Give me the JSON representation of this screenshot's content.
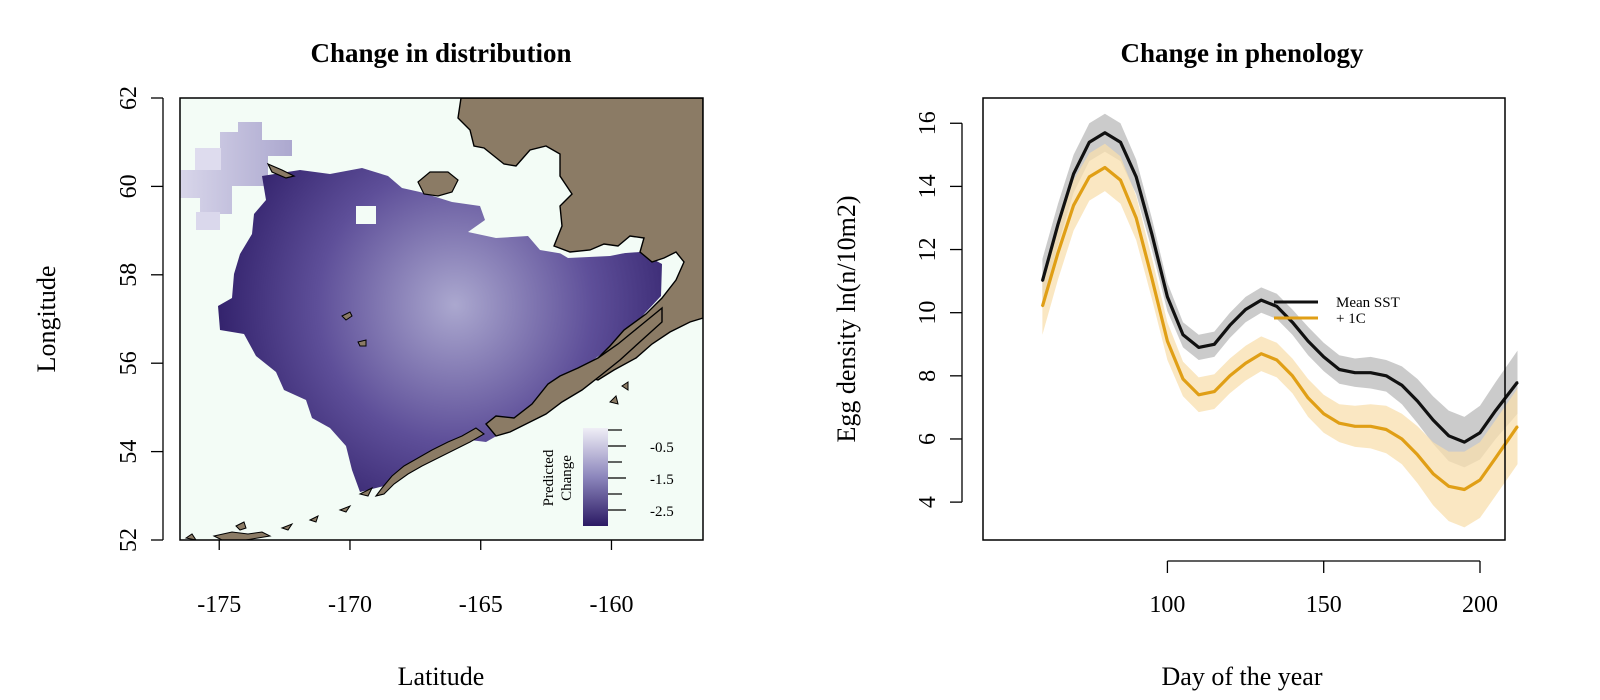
{
  "colors": {
    "land": "#8b7b65",
    "ocean_bg": "#f3fcf6",
    "mean_line": "#111111",
    "mean_band": "#c8c8c8",
    "warm_line": "#e09f16",
    "warm_band": "#f8dfae",
    "ramp_low": "#2b1a64",
    "ramp_mid": "#8c86bc",
    "ramp_high": "#efeef6"
  },
  "chart_data": [
    {
      "type": "heatmap",
      "title": "Change in distribution",
      "xlabel": "Latitude",
      "ylabel": "Longitude",
      "xlim": [
        -176.5,
        -156.5
      ],
      "ylim": [
        52,
        62
      ],
      "x_ticks": [
        "-175",
        "-170",
        "-165",
        "-160"
      ],
      "y_ticks": [
        "52",
        "54",
        "56",
        "58",
        "60",
        "62"
      ],
      "colorbar": {
        "title_line1": "Predicted",
        "title_line2": "Change",
        "ticks": [
          "-0.5",
          "-1.5",
          "-2.5"
        ],
        "range": [
          -3.0,
          0.0
        ]
      },
      "grid": false
    },
    {
      "type": "line",
      "title": "Change in phenology",
      "xlabel": "Day of the year",
      "ylabel": "Egg density ln(n/10m2)",
      "xlim": [
        41,
        208
      ],
      "ylim": [
        2.8,
        16.8
      ],
      "x_ticks": [
        "100",
        "150",
        "200"
      ],
      "y_ticks": [
        "4",
        "6",
        "8",
        "10",
        "12",
        "14",
        "16"
      ],
      "legend_position": "center-right",
      "x": [
        60,
        65,
        70,
        75,
        80,
        85,
        90,
        95,
        100,
        105,
        110,
        115,
        120,
        125,
        130,
        135,
        140,
        145,
        150,
        155,
        160,
        165,
        170,
        175,
        180,
        185,
        190,
        195,
        200,
        205,
        212
      ],
      "series": [
        {
          "name": "Mean SST",
          "values": [
            11.0,
            12.8,
            14.4,
            15.4,
            15.7,
            15.4,
            14.3,
            12.5,
            10.5,
            9.3,
            8.9,
            9.0,
            9.6,
            10.1,
            10.4,
            10.2,
            9.7,
            9.1,
            8.6,
            8.2,
            8.1,
            8.1,
            8.0,
            7.7,
            7.2,
            6.6,
            6.1,
            5.9,
            6.2,
            6.9,
            7.8
          ],
          "band": [
            0.7,
            0.65,
            0.6,
            0.6,
            0.6,
            0.6,
            0.55,
            0.5,
            0.45,
            0.4,
            0.4,
            0.4,
            0.4,
            0.4,
            0.4,
            0.4,
            0.4,
            0.45,
            0.45,
            0.45,
            0.45,
            0.5,
            0.5,
            0.6,
            0.7,
            0.75,
            0.8,
            0.8,
            0.85,
            0.9,
            1.0
          ]
        },
        {
          "name": "+ 1C",
          "values": [
            10.2,
            11.9,
            13.4,
            14.3,
            14.6,
            14.2,
            13.0,
            11.1,
            9.1,
            7.9,
            7.4,
            7.5,
            8.0,
            8.4,
            8.7,
            8.5,
            8.0,
            7.3,
            6.8,
            6.5,
            6.4,
            6.4,
            6.3,
            6.0,
            5.5,
            4.9,
            4.5,
            4.4,
            4.7,
            5.4,
            6.4
          ],
          "band": [
            0.9,
            0.85,
            0.8,
            0.75,
            0.75,
            0.75,
            0.7,
            0.65,
            0.6,
            0.55,
            0.55,
            0.55,
            0.55,
            0.55,
            0.55,
            0.55,
            0.55,
            0.6,
            0.6,
            0.6,
            0.65,
            0.7,
            0.75,
            0.8,
            0.9,
            1.0,
            1.1,
            1.2,
            1.2,
            1.2,
            1.2
          ]
        }
      ],
      "grid": false
    }
  ]
}
